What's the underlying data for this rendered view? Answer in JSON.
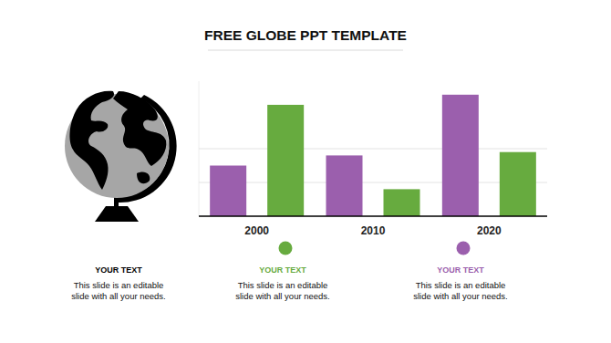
{
  "chart_data": {
    "type": "bar",
    "title": "FREE GLOBE PPT TEMPLATE",
    "categories": [
      "2000",
      "2010",
      "2020"
    ],
    "series": [
      {
        "color": "#9b5fad",
        "values": [
          15,
          18,
          36
        ]
      },
      {
        "color": "#67ab3f",
        "values": [
          33,
          8,
          19
        ]
      }
    ],
    "ylim": [
      0,
      40
    ],
    "yticks": [
      0,
      10,
      20
    ],
    "grid": true,
    "tick_labels": "x",
    "annotations": [
      {
        "title": "YOUR TEXT",
        "text": [
          "This slide is an editable",
          "slide with all your needs."
        ],
        "color": "#000000"
      },
      {
        "title": "YOUR TEXT",
        "text": [
          "This slide is an editable",
          "slide with all your needs."
        ],
        "color": "#67ab3f",
        "marker": "circle"
      },
      {
        "title": "YOUR TEXT",
        "text": [
          "This slide is an editable",
          "slide with all your needs."
        ],
        "color": "#9b5fad",
        "marker": "circle"
      }
    ]
  }
}
